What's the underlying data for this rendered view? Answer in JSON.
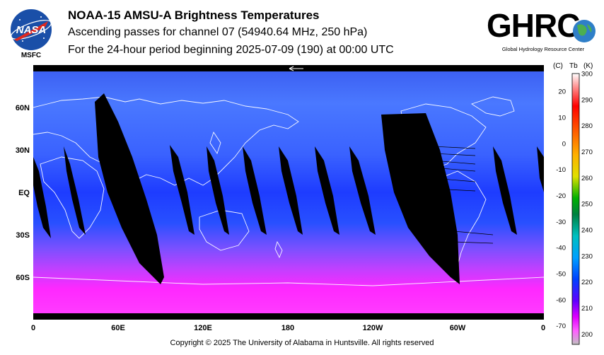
{
  "header": {
    "title": "NOAA-15 AMSU-A Brightness Temperatures",
    "subtitle": "Ascending passes for channel 07 (54940.64 MHz, 250 hPa)",
    "period": "For the 24-hour period beginning 2025-07-09 (190) at 00:00 UTC"
  },
  "logos": {
    "nasa": {
      "text": "NASA",
      "caption": "MSFC"
    },
    "ghrc": {
      "text": "GHRC",
      "caption": "Global Hydrology Resource Center"
    }
  },
  "map": {
    "lat_labels": [
      "60N",
      "30N",
      "EQ",
      "30S",
      "60S"
    ],
    "lon_labels": [
      "0",
      "60E",
      "120E",
      "180",
      "120W",
      "60W",
      "0"
    ],
    "colors": {
      "no_data": "#000000",
      "tropics": "#1e40ff",
      "midlat": "#3c6cff",
      "polar_south": "#ff20ff",
      "coastline": "#ffffff"
    }
  },
  "colorbar": {
    "unit_c": "(C)",
    "unit_tb": "Tb",
    "unit_k": "(K)",
    "celsius_ticks": [
      "20",
      "10",
      "0",
      "-10",
      "-20",
      "-30",
      "-40",
      "-50",
      "-60",
      "-70"
    ],
    "kelvin_ticks": [
      "300",
      "290",
      "280",
      "270",
      "260",
      "250",
      "240",
      "230",
      "220",
      "210",
      "200"
    ]
  },
  "footer": {
    "copyright": "Copyright © 2025 The University of Alabama in Huntsville.  All rights reserved"
  }
}
